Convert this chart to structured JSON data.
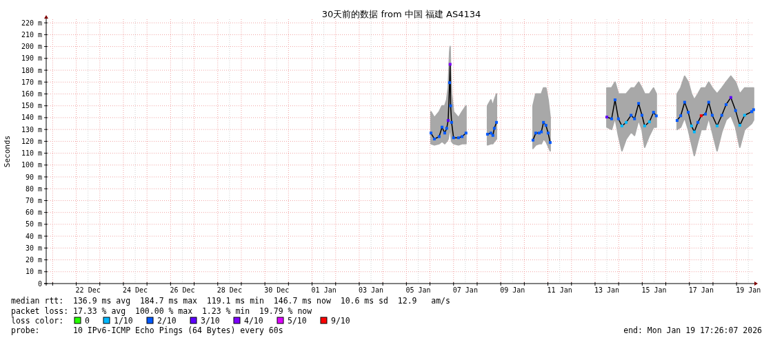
{
  "chart_data": {
    "type": "line",
    "title": "30天前的数据 from 中国 福建 AS4134",
    "ylabel": "Seconds",
    "legend_title": "loss color:",
    "legend": "bottom",
    "grid": true,
    "marker": "square",
    "xlim": [
      "2025-12-20T17:26",
      "2026-01-19T17:26"
    ],
    "xticks": [
      {
        "value": "2025-12-21T00:00",
        "label": null
      },
      {
        "value": "2025-12-22T00:00",
        "label": null
      },
      {
        "value": "2025-12-22T12:00",
        "label": "22 Dec"
      },
      {
        "value": "2025-12-23T00:00",
        "label": null
      },
      {
        "value": "2025-12-24T00:00",
        "label": null
      },
      {
        "value": "2025-12-24T12:00",
        "label": "24 Dec"
      },
      {
        "value": "2025-12-25T00:00",
        "label": null
      },
      {
        "value": "2025-12-26T00:00",
        "label": null
      },
      {
        "value": "2025-12-26T12:00",
        "label": "26 Dec"
      },
      {
        "value": "2025-12-27T00:00",
        "label": null
      },
      {
        "value": "2025-12-28T00:00",
        "label": null
      },
      {
        "value": "2025-12-28T12:00",
        "label": "28 Dec"
      },
      {
        "value": "2025-12-29T00:00",
        "label": null
      },
      {
        "value": "2025-12-30T00:00",
        "label": null
      },
      {
        "value": "2025-12-30T12:00",
        "label": "30 Dec"
      },
      {
        "value": "2025-12-31T00:00",
        "label": null
      },
      {
        "value": "2026-01-01T00:00",
        "label": null
      },
      {
        "value": "2026-01-01T12:00",
        "label": "01 Jan"
      },
      {
        "value": "2026-01-02T00:00",
        "label": null
      },
      {
        "value": "2026-01-03T00:00",
        "label": null
      },
      {
        "value": "2026-01-03T12:00",
        "label": "03 Jan"
      },
      {
        "value": "2026-01-04T00:00",
        "label": null
      },
      {
        "value": "2026-01-05T00:00",
        "label": null
      },
      {
        "value": "2026-01-05T12:00",
        "label": "05 Jan"
      },
      {
        "value": "2026-01-06T00:00",
        "label": null
      },
      {
        "value": "2026-01-07T00:00",
        "label": null
      },
      {
        "value": "2026-01-07T12:00",
        "label": "07 Jan"
      },
      {
        "value": "2026-01-08T00:00",
        "label": null
      },
      {
        "value": "2026-01-09T00:00",
        "label": null
      },
      {
        "value": "2026-01-09T12:00",
        "label": "09 Jan"
      },
      {
        "value": "2026-01-10T00:00",
        "label": null
      },
      {
        "value": "2026-01-11T00:00",
        "label": null
      },
      {
        "value": "2026-01-11T12:00",
        "label": "11 Jan"
      },
      {
        "value": "2026-01-12T00:00",
        "label": null
      },
      {
        "value": "2026-01-13T00:00",
        "label": null
      },
      {
        "value": "2026-01-13T12:00",
        "label": "13 Jan"
      },
      {
        "value": "2026-01-14T00:00",
        "label": null
      },
      {
        "value": "2026-01-15T00:00",
        "label": null
      },
      {
        "value": "2026-01-15T12:00",
        "label": "15 Jan"
      },
      {
        "value": "2026-01-16T00:00",
        "label": null
      },
      {
        "value": "2026-01-17T00:00",
        "label": null
      },
      {
        "value": "2026-01-17T12:00",
        "label": "17 Jan"
      },
      {
        "value": "2026-01-18T00:00",
        "label": null
      },
      {
        "value": "2026-01-19T00:00",
        "label": null
      },
      {
        "value": "2026-01-19T12:00",
        "label": "19 Jan"
      }
    ],
    "ylim": [
      0,
      223
    ],
    "yticks": [
      0,
      {
        "value": 10,
        "label": "10 m"
      },
      {
        "value": 20,
        "label": "20 m"
      },
      {
        "value": 30,
        "label": "30 m"
      },
      {
        "value": 40,
        "label": "40 m"
      },
      {
        "value": 50,
        "label": "50 m"
      },
      {
        "value": 60,
        "label": "60 m"
      },
      {
        "value": 70,
        "label": "70 m"
      },
      {
        "value": 80,
        "label": "80 m"
      },
      {
        "value": 90,
        "label": "90 m"
      },
      {
        "value": 100,
        "label": "100 m"
      },
      {
        "value": 110,
        "label": "110 m"
      },
      {
        "value": 120,
        "label": "120 m"
      },
      {
        "value": 130,
        "label": "130 m"
      },
      {
        "value": 140,
        "label": "140 m"
      },
      {
        "value": 150,
        "label": "150 m"
      },
      {
        "value": 160,
        "label": "160 m"
      },
      {
        "value": 170,
        "label": "170 m"
      },
      {
        "value": 180,
        "label": "180 m"
      },
      {
        "value": 190,
        "label": "190 m"
      },
      {
        "value": 200,
        "label": "200 m"
      },
      {
        "value": 210,
        "label": "210 m"
      },
      {
        "value": 220,
        "label": "220 m"
      }
    ],
    "series": [
      {
        "marker": "none",
        "color": "#000000",
        "x": [
          "2026-01-06T01:00",
          "2026-01-06T04:30",
          "2026-01-06T09:20",
          "2026-01-06T12:15",
          "2026-01-06T15:00",
          "2026-01-06T17:00",
          "2026-01-06T18:30",
          "2026-01-06T20:00",
          "2026-01-06T20:30",
          "2026-01-06T21:00",
          "2026-01-06T22:00",
          "2026-01-07T00:00",
          "2026-01-07T05:00",
          "2026-01-07T08:40",
          "2026-01-07T12:40",
          "2026-01-08T10:30",
          "2026-01-08T14:00",
          "2026-01-08T16:00",
          "2026-01-08T17:30",
          "2026-01-08T19:40",
          "2026-01-10T08:50",
          "2026-01-10T11:40",
          "2026-01-10T15:10",
          "2026-01-10T17:20",
          "2026-01-10T19:30",
          "2026-01-10T22:00",
          "2026-01-11T00:15",
          "2026-01-11T02:20",
          "2026-01-13T12:00",
          "2026-01-13T16:50",
          "2026-01-13T20:20",
          "2026-01-13T23:45",
          "2026-01-14T03:20",
          "2026-01-14T07:40",
          "2026-01-14T12:40",
          "2026-01-14T16:10",
          "2026-01-14T20:20",
          "2026-01-14T23:45",
          "2026-01-15T02:30",
          "2026-01-15T07:20",
          "2026-01-15T11:30",
          "2026-01-15T14:20",
          "2026-01-16T11:30",
          "2026-01-16T15:10",
          "2026-01-16T19:10",
          "2026-01-16T22:50",
          "2026-01-17T02:10",
          "2026-01-17T05:00",
          "2026-01-17T08:40",
          "2026-01-17T12:00",
          "2026-01-17T16:20",
          "2026-01-17T19:40",
          "2026-01-17T23:15",
          "2026-01-18T04:10",
          "2026-01-18T09:00",
          "2026-01-18T13:20",
          "2026-01-18T18:10",
          "2026-01-18T23:00",
          "2026-01-19T03:20",
          "2026-01-19T08:10",
          "2026-01-19T15:20",
          "2026-01-19T17:20"
        ],
        "values": [
          127,
          122,
          124,
          132,
          127,
          131,
          137.6,
          169.5,
          185,
          150,
          136,
          123,
          123,
          124,
          127,
          126,
          127,
          125,
          131,
          136,
          121,
          127,
          127,
          128,
          136,
          133.5,
          127,
          119,
          140.5,
          139,
          155,
          139,
          133,
          136,
          142,
          139,
          152,
          142,
          133,
          136.5,
          144.5,
          141.5,
          137.6,
          141.6,
          153,
          144.5,
          133,
          128,
          136,
          141.6,
          143,
          153,
          142,
          133,
          142,
          151,
          157,
          146,
          133.5,
          142,
          145,
          146.7
        ],
        "lower": [
          118,
          117,
          118,
          120,
          118,
          120,
          122,
          130,
          140,
          128,
          120,
          118,
          117,
          118,
          118,
          117,
          118,
          118,
          120,
          122,
          114,
          117,
          118,
          118,
          122,
          120,
          116,
          112,
          132,
          130,
          140,
          125,
          112,
          122,
          128,
          125,
          138,
          130,
          115,
          125,
          132,
          132,
          130,
          132,
          140,
          130,
          118,
          108,
          120,
          130,
          130,
          140,
          128,
          112,
          128,
          138,
          142,
          132,
          115,
          130,
          135,
          138
        ],
        "upper": [
          145,
          140,
          145,
          150,
          150,
          155,
          165,
          195,
          200,
          180,
          160,
          145,
          140,
          145,
          150,
          150,
          155,
          150,
          155,
          160,
          150,
          160,
          160,
          160,
          165,
          165,
          155,
          140,
          165,
          165,
          170,
          160,
          160,
          160,
          165,
          165,
          170,
          165,
          160,
          160,
          165,
          160,
          160,
          165,
          175,
          170,
          160,
          155,
          160,
          165,
          165,
          170,
          165,
          160,
          165,
          170,
          175,
          170,
          160,
          165,
          165,
          165
        ]
      },
      {
        "type": "scatter",
        "name": "0",
        "color": "#26ff00"
      },
      {
        "type": "scatter",
        "name": "1/10",
        "color": "#00b8ff",
        "x": [
          "2026-01-14T03:20",
          "2026-01-14T07:40",
          "2026-01-15T02:30",
          "2026-01-15T07:20",
          "2026-01-17T02:10",
          "2026-01-17T05:00",
          "2026-01-18T04:10",
          "2026-01-19T03:20",
          "2026-01-19T08:10"
        ],
        "values": [
          133,
          136,
          133,
          136.5,
          133,
          128,
          133,
          133.5,
          142
        ]
      },
      {
        "type": "scatter",
        "name": "2/10",
        "color": "#0059ff",
        "x": [
          "2026-01-06T01:00",
          "2026-01-06T04:30",
          "2026-01-06T09:20",
          "2026-01-06T12:15",
          "2026-01-06T15:00",
          "2026-01-06T17:00",
          "2026-01-06T20:00",
          "2026-01-06T21:00",
          "2026-01-06T22:00",
          "2026-01-07T00:00",
          "2026-01-07T05:00",
          "2026-01-07T08:40",
          "2026-01-07T12:40",
          "2026-01-08T10:30",
          "2026-01-08T14:00",
          "2026-01-08T16:00",
          "2026-01-08T17:30",
          "2026-01-08T19:40",
          "2026-01-10T08:50",
          "2026-01-10T11:40",
          "2026-01-10T15:10",
          "2026-01-10T17:20",
          "2026-01-10T19:30",
          "2026-01-10T22:00",
          "2026-01-11T00:15",
          "2026-01-11T02:20",
          "2026-01-13T16:50",
          "2026-01-13T20:20",
          "2026-01-13T23:45",
          "2026-01-14T12:40",
          "2026-01-14T16:10",
          "2026-01-14T20:20",
          "2026-01-14T23:45",
          "2026-01-15T11:30",
          "2026-01-15T14:20",
          "2026-01-16T11:30",
          "2026-01-16T15:10",
          "2026-01-16T19:10",
          "2026-01-16T22:50",
          "2026-01-17T08:40",
          "2026-01-17T16:20",
          "2026-01-17T19:40",
          "2026-01-17T23:15",
          "2026-01-18T09:00",
          "2026-01-18T13:20",
          "2026-01-18T23:00",
          "2026-01-19T15:20",
          "2026-01-19T17:20"
        ],
        "values": [
          127,
          122,
          124,
          132,
          127,
          131,
          169.5,
          150,
          136,
          123,
          123,
          124,
          127,
          126,
          127,
          125,
          131,
          136,
          121,
          127,
          127,
          128,
          136,
          133.5,
          127,
          119,
          139,
          155,
          139,
          142,
          139,
          152,
          142,
          144.5,
          141.5,
          137.6,
          141.6,
          153,
          144.5,
          136,
          143,
          153,
          142,
          142,
          151,
          146,
          145,
          146.7
        ]
      },
      {
        "type": "scatter",
        "name": "3/10",
        "color": "#5e00ff",
        "x": [
          "2026-01-06T18:30",
          "2026-01-13T12:00",
          "2026-01-18T18:10"
        ],
        "values": [
          137.6,
          140.5,
          157
        ]
      },
      {
        "type": "scatter",
        "name": "4/10",
        "color": "#7e00ff",
        "x": [
          "2026-01-06T20:30"
        ],
        "values": [
          185
        ]
      },
      {
        "type": "scatter",
        "name": "5/10",
        "color": "#dd00ff"
      },
      {
        "type": "scatter",
        "name": "9/10",
        "color": "#ff0000",
        "x": [
          "2026-01-17T12:00"
        ],
        "values": [
          141.6
        ]
      }
    ],
    "annotations": [
      "median rtt:  136.9 ms avg  184.7 ms max  119.1 ms min  146.7 ms now  10.6 ms sd  12.9   am/s",
      "packet loss: 17.33 % avg  100.00 % max  1.23 % min  19.79 % now",
      "probe:       10 IPv6-ICMP Echo Pings (64 Bytes) every 60s",
      "end: Mon Jan 19 17:26:07 2026"
    ]
  }
}
